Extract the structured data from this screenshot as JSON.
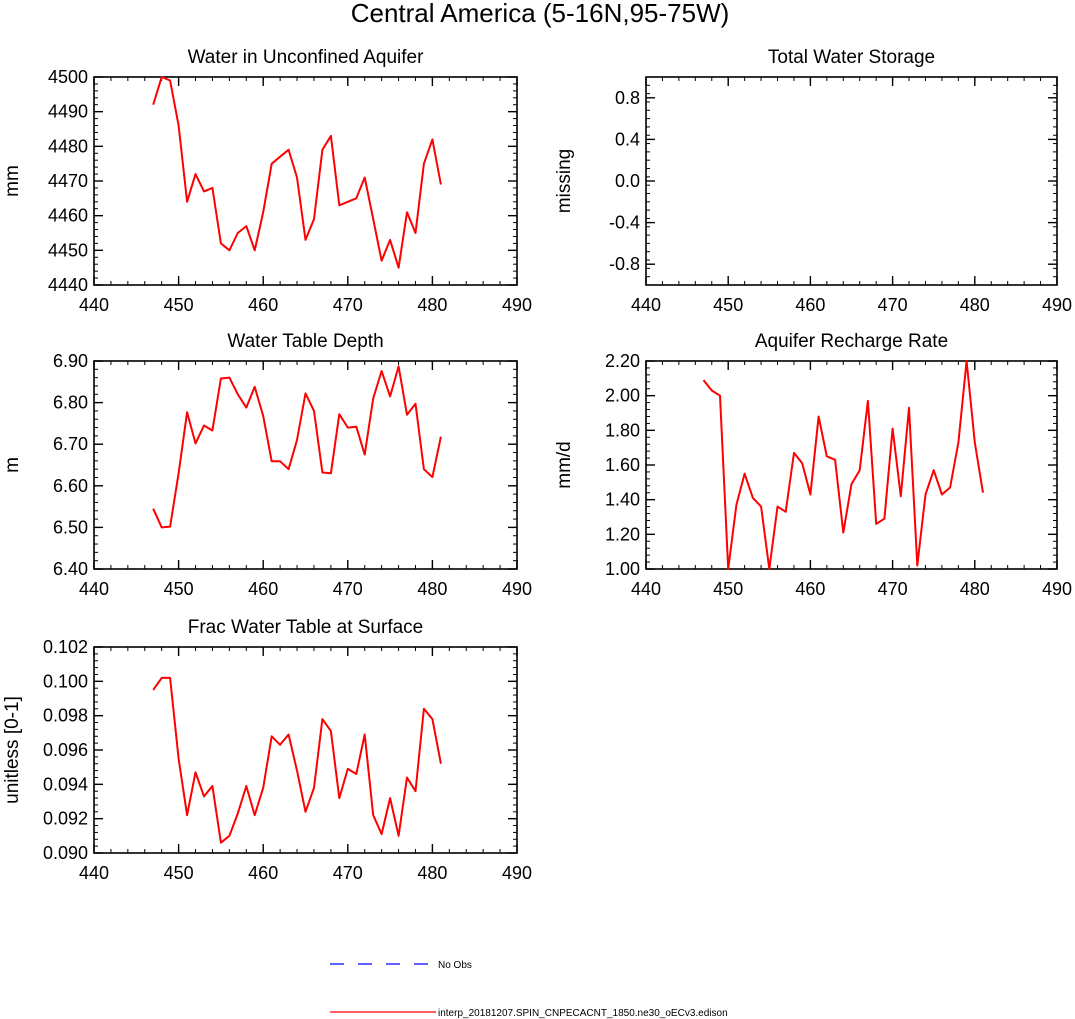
{
  "figure_title": "Central America (5-16N,95-75W)",
  "legend": [
    {
      "label": "No Obs",
      "color": "#0000ff",
      "dash": true
    },
    {
      "label": "interp_20181207.SPIN_CNPECACNT_1850.ne30_oECv3.edison",
      "color": "#ff0000",
      "dash": false
    }
  ],
  "chart_data": [
    {
      "type": "line",
      "title": "Water in Unconfined Aquifer",
      "ylabel": "mm",
      "xlim": [
        440,
        490
      ],
      "ylim": [
        4440,
        4500
      ],
      "xticks": [
        440,
        450,
        460,
        470,
        480,
        490
      ],
      "xtick_labels": [
        "440",
        "450",
        "460",
        "470",
        "480",
        "490"
      ],
      "yticks": [
        4440,
        4450,
        4460,
        4470,
        4480,
        4490,
        4500
      ],
      "ytick_labels": [
        "4440",
        "4450",
        "4460",
        "4470",
        "4480",
        "4490",
        "4500"
      ],
      "series": [
        {
          "name": "interp_20181207.SPIN_CNPECACNT_1850.ne30_oECv3.edison",
          "color": "#ff0000",
          "x": [
            447,
            448,
            449,
            450,
            451,
            452,
            453,
            454,
            455,
            456,
            457,
            458,
            459,
            460,
            461,
            462,
            463,
            464,
            465,
            466,
            467,
            468,
            469,
            470,
            471,
            472,
            473,
            474,
            475,
            476,
            477,
            478,
            479,
            480,
            481
          ],
          "y": [
            4492,
            4500,
            4499,
            4486,
            4464,
            4472,
            4467,
            4468,
            4452,
            4450,
            4455,
            4457,
            4450,
            4461,
            4475,
            4477,
            4479,
            4471,
            4453,
            4459,
            4479,
            4483,
            4463,
            4464,
            4465,
            4471,
            4459,
            4447,
            4453,
            4445,
            4461,
            4455,
            4475,
            4482,
            4469
          ]
        }
      ]
    },
    {
      "type": "line",
      "title": "Total Water Storage",
      "ylabel": "missing",
      "xlim": [
        440,
        490
      ],
      "ylim": [
        -1,
        1
      ],
      "xticks": [
        440,
        450,
        460,
        470,
        480,
        490
      ],
      "xtick_labels": [
        "440",
        "450",
        "460",
        "470",
        "480",
        "490"
      ],
      "yticks": [
        -0.8,
        -0.4,
        0.0,
        0.4,
        0.8
      ],
      "ytick_labels": [
        "-0.8",
        "-0.4",
        "0.0",
        "0.4",
        "0.8"
      ],
      "series": []
    },
    {
      "type": "line",
      "title": "Water Table Depth",
      "ylabel": "m",
      "xlim": [
        440,
        490
      ],
      "ylim": [
        6.4,
        6.9
      ],
      "xticks": [
        440,
        450,
        460,
        470,
        480,
        490
      ],
      "xtick_labels": [
        "440",
        "450",
        "460",
        "470",
        "480",
        "490"
      ],
      "yticks": [
        6.4,
        6.5,
        6.6,
        6.7,
        6.8,
        6.9
      ],
      "ytick_labels": [
        "6.40",
        "6.50",
        "6.60",
        "6.70",
        "6.80",
        "6.90"
      ],
      "series": [
        {
          "name": "interp_20181207.SPIN_CNPECACNT_1850.ne30_oECv3.edison",
          "color": "#ff0000",
          "x": [
            447,
            448,
            449,
            450,
            451,
            452,
            453,
            454,
            455,
            456,
            457,
            458,
            459,
            460,
            461,
            462,
            463,
            464,
            465,
            466,
            467,
            468,
            469,
            470,
            471,
            472,
            473,
            474,
            475,
            476,
            477,
            478,
            479,
            480,
            481
          ],
          "y": [
            6.545,
            6.5,
            6.502,
            6.63,
            6.777,
            6.702,
            6.745,
            6.733,
            6.858,
            6.86,
            6.82,
            6.788,
            6.838,
            6.768,
            6.659,
            6.659,
            6.64,
            6.71,
            6.822,
            6.78,
            6.632,
            6.63,
            6.772,
            6.74,
            6.742,
            6.675,
            6.81,
            6.876,
            6.815,
            6.887,
            6.771,
            6.797,
            6.64,
            6.621,
            6.718
          ]
        }
      ]
    },
    {
      "type": "line",
      "title": "Aquifer Recharge Rate",
      "ylabel": "mm/d",
      "xlim": [
        440,
        490
      ],
      "ylim": [
        1.0,
        2.2
      ],
      "xticks": [
        440,
        450,
        460,
        470,
        480,
        490
      ],
      "xtick_labels": [
        "440",
        "450",
        "460",
        "470",
        "480",
        "490"
      ],
      "yticks": [
        1.0,
        1.2,
        1.4,
        1.6,
        1.8,
        2.0,
        2.2
      ],
      "ytick_labels": [
        "1.00",
        "1.20",
        "1.40",
        "1.60",
        "1.80",
        "2.00",
        "2.20"
      ],
      "series": [
        {
          "name": "interp_20181207.SPIN_CNPECACNT_1850.ne30_oECv3.edison",
          "color": "#ff0000",
          "x": [
            447,
            448,
            449,
            450,
            451,
            452,
            453,
            454,
            455,
            456,
            457,
            458,
            459,
            460,
            461,
            462,
            463,
            464,
            465,
            466,
            467,
            468,
            469,
            470,
            471,
            472,
            473,
            474,
            475,
            476,
            477,
            478,
            479,
            480,
            481
          ],
          "y": [
            2.09,
            2.03,
            2.0,
            1.0,
            1.37,
            1.55,
            1.41,
            1.36,
            1.0,
            1.36,
            1.33,
            1.67,
            1.61,
            1.43,
            1.88,
            1.65,
            1.63,
            1.21,
            1.49,
            1.57,
            1.97,
            1.26,
            1.29,
            1.81,
            1.42,
            1.93,
            1.02,
            1.43,
            1.57,
            1.43,
            1.47,
            1.73,
            2.2,
            1.73,
            1.44
          ]
        }
      ]
    },
    {
      "type": "line",
      "title": "Frac Water Table at Surface",
      "ylabel": "unitless [0-1]",
      "xlim": [
        440,
        490
      ],
      "ylim": [
        0.09,
        0.102
      ],
      "xticks": [
        440,
        450,
        460,
        470,
        480,
        490
      ],
      "xtick_labels": [
        "440",
        "450",
        "460",
        "470",
        "480",
        "490"
      ],
      "yticks": [
        0.09,
        0.092,
        0.094,
        0.096,
        0.098,
        0.1,
        0.102
      ],
      "ytick_labels": [
        "0.090",
        "0.092",
        "0.094",
        "0.096",
        "0.098",
        "0.100",
        "0.102"
      ],
      "series": [
        {
          "name": "interp_20181207.SPIN_CNPECACNT_1850.ne30_oECv3.edison",
          "color": "#ff0000",
          "x": [
            447,
            448,
            449,
            450,
            451,
            452,
            453,
            454,
            455,
            456,
            457,
            458,
            459,
            460,
            461,
            462,
            463,
            464,
            465,
            466,
            467,
            468,
            469,
            470,
            471,
            472,
            473,
            474,
            475,
            476,
            477,
            478,
            479,
            480,
            481
          ],
          "y": [
            0.0995,
            0.1002,
            0.1002,
            0.0955,
            0.0922,
            0.0947,
            0.0933,
            0.0939,
            0.0906,
            0.091,
            0.0923,
            0.0939,
            0.0922,
            0.0938,
            0.0968,
            0.0963,
            0.0969,
            0.0948,
            0.0924,
            0.0938,
            0.0978,
            0.0971,
            0.0932,
            0.0949,
            0.0946,
            0.0969,
            0.0922,
            0.0911,
            0.0932,
            0.091,
            0.0944,
            0.0936,
            0.0984,
            0.0978,
            0.0952
          ]
        }
      ]
    }
  ]
}
